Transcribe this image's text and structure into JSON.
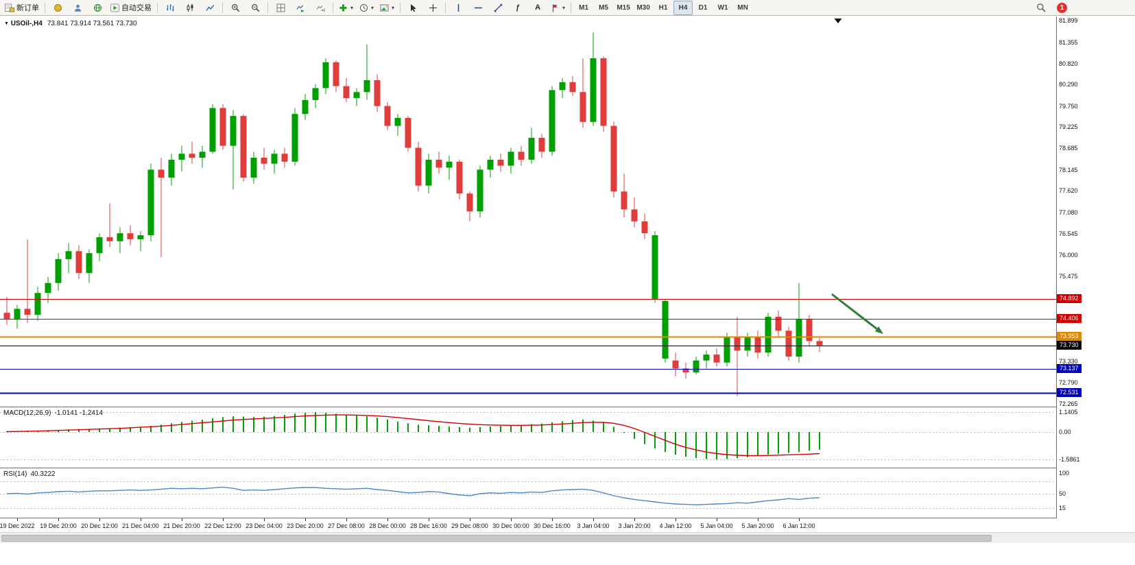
{
  "toolbar": {
    "new_order": "新订单",
    "auto_trading": "自动交易",
    "tool_labels": {
      "text": "A",
      "fibonacci": "ƒ"
    },
    "timeframes": [
      "M1",
      "M5",
      "M15",
      "M30",
      "H1",
      "H4",
      "D1",
      "W1",
      "MN"
    ],
    "active_timeframe": "H4",
    "notification_count": "1"
  },
  "chart_data": {
    "type": "candlestick",
    "title_symbol": "USOil-,H4",
    "title_ohlc": "73.841 73.914 73.561 73.730",
    "price_range": {
      "max": 81.899,
      "min": 72.265
    },
    "colors": {
      "bull": "#00A000",
      "bear": "#E03C3C",
      "macd_hist": "#00A000",
      "macd_signal": "#D40000",
      "rsi_line": "#4A86C8",
      "level_red": "#CC0000",
      "level_orange": "#DD8A00",
      "level_blue": "#0000BB",
      "level_black": "#000000",
      "arrow_green": "#2E7D32"
    },
    "candles": [
      [
        74.55,
        74.95,
        74.25,
        74.4
      ],
      [
        74.4,
        74.75,
        74.15,
        74.65
      ],
      [
        74.65,
        76.4,
        74.3,
        74.5
      ],
      [
        74.5,
        75.2,
        74.35,
        75.05
      ],
      [
        75.05,
        75.45,
        74.8,
        75.3
      ],
      [
        75.3,
        76.05,
        75.1,
        75.9
      ],
      [
        75.9,
        76.3,
        75.55,
        76.1
      ],
      [
        76.1,
        76.25,
        75.4,
        75.55
      ],
      [
        75.55,
        76.15,
        75.3,
        76.05
      ],
      [
        76.05,
        76.55,
        75.85,
        76.45
      ],
      [
        76.45,
        77.3,
        76.2,
        76.35
      ],
      [
        76.35,
        76.7,
        76.05,
        76.55
      ],
      [
        76.55,
        76.75,
        76.25,
        76.4
      ],
      [
        76.4,
        76.6,
        76.1,
        76.5
      ],
      [
        76.5,
        78.3,
        76.35,
        78.15
      ],
      [
        78.15,
        78.45,
        75.95,
        77.95
      ],
      [
        77.95,
        78.55,
        77.75,
        78.4
      ],
      [
        78.4,
        78.75,
        78.1,
        78.55
      ],
      [
        78.55,
        78.85,
        78.3,
        78.45
      ],
      [
        78.45,
        78.75,
        78.2,
        78.6
      ],
      [
        78.6,
        79.8,
        78.55,
        79.7
      ],
      [
        79.7,
        79.8,
        78.65,
        78.75
      ],
      [
        78.75,
        79.65,
        77.65,
        79.5
      ],
      [
        79.5,
        79.55,
        77.85,
        77.95
      ],
      [
        77.95,
        78.6,
        77.8,
        78.45
      ],
      [
        78.45,
        78.7,
        78.15,
        78.3
      ],
      [
        78.3,
        78.65,
        78.05,
        78.55
      ],
      [
        78.55,
        78.7,
        78.2,
        78.35
      ],
      [
        78.35,
        79.7,
        78.25,
        79.55
      ],
      [
        79.55,
        80.05,
        79.4,
        79.9
      ],
      [
        79.9,
        80.3,
        79.7,
        80.2
      ],
      [
        80.2,
        80.95,
        80.05,
        80.85
      ],
      [
        80.85,
        80.9,
        80.1,
        80.25
      ],
      [
        80.25,
        80.45,
        79.85,
        79.95
      ],
      [
        79.95,
        80.2,
        79.75,
        80.1
      ],
      [
        80.1,
        81.3,
        79.9,
        80.4
      ],
      [
        80.4,
        80.55,
        79.6,
        79.75
      ],
      [
        79.75,
        79.85,
        79.15,
        79.25
      ],
      [
        79.25,
        79.55,
        79.0,
        79.45
      ],
      [
        79.45,
        79.5,
        78.6,
        78.7
      ],
      [
        78.7,
        78.85,
        77.6,
        77.75
      ],
      [
        77.75,
        78.55,
        77.55,
        78.4
      ],
      [
        78.4,
        78.6,
        78.05,
        78.2
      ],
      [
        78.2,
        78.5,
        77.9,
        78.35
      ],
      [
        78.35,
        78.4,
        77.4,
        77.55
      ],
      [
        77.55,
        77.6,
        76.85,
        77.1
      ],
      [
        77.1,
        78.25,
        76.95,
        78.15
      ],
      [
        78.15,
        78.5,
        77.95,
        78.4
      ],
      [
        78.4,
        78.55,
        78.1,
        78.25
      ],
      [
        78.25,
        78.7,
        78.05,
        78.6
      ],
      [
        78.6,
        78.75,
        78.25,
        78.4
      ],
      [
        78.4,
        79.2,
        78.3,
        78.95
      ],
      [
        78.95,
        79.05,
        78.45,
        78.6
      ],
      [
        78.6,
        80.25,
        78.5,
        80.15
      ],
      [
        80.15,
        80.45,
        79.95,
        80.35
      ],
      [
        80.35,
        80.5,
        80.0,
        80.1
      ],
      [
        80.1,
        80.95,
        79.2,
        79.35
      ],
      [
        79.35,
        81.6,
        79.25,
        80.95
      ],
      [
        80.95,
        81.0,
        79.1,
        79.25
      ],
      [
        79.25,
        79.35,
        77.45,
        77.6
      ],
      [
        77.6,
        78.05,
        76.95,
        77.15
      ],
      [
        77.15,
        77.45,
        76.7,
        76.85
      ],
      [
        76.85,
        77.05,
        76.4,
        76.55
      ],
      [
        74.9,
        76.6,
        74.8,
        76.5
      ],
      [
        73.4,
        74.9,
        73.3,
        74.85
      ],
      [
        73.35,
        73.55,
        72.95,
        73.15
      ],
      [
        73.15,
        73.3,
        72.9,
        73.05
      ],
      [
        73.05,
        73.45,
        73.0,
        73.35
      ],
      [
        73.35,
        73.6,
        73.15,
        73.5
      ],
      [
        73.5,
        73.65,
        73.2,
        73.3
      ],
      [
        73.3,
        74.05,
        73.2,
        73.95
      ],
      [
        73.95,
        74.45,
        72.45,
        73.6
      ],
      [
        73.6,
        74.05,
        73.45,
        73.95
      ],
      [
        73.95,
        74.1,
        73.4,
        73.55
      ],
      [
        73.55,
        74.55,
        73.45,
        74.45
      ],
      [
        74.45,
        74.6,
        73.95,
        74.1
      ],
      [
        74.1,
        74.2,
        73.35,
        73.45
      ],
      [
        73.45,
        75.3,
        73.3,
        74.4
      ],
      [
        74.4,
        74.5,
        73.7,
        73.84
      ],
      [
        73.841,
        73.914,
        73.561,
        73.73
      ]
    ],
    "price_axis": {
      "labels": [
        "81.899",
        "81.355",
        "80.820",
        "80.290",
        "79.750",
        "79.225",
        "78.685",
        "78.145",
        "77.620",
        "77.080",
        "76.545",
        "76.000",
        "75.475",
        "73.330",
        "72.790",
        "72.265"
      ]
    },
    "levels": [
      {
        "price": 74.892,
        "label": "74.892",
        "type": "red",
        "width": 1
      },
      {
        "price": 74.406,
        "label": "74.406",
        "type": "red",
        "width": 1
      },
      {
        "price": 73.953,
        "label": "73.953",
        "type": "orange",
        "width": 2
      },
      {
        "price": 73.73,
        "label": "73.730",
        "type": "black",
        "width": 1
      },
      {
        "price": 73.137,
        "label": "73.137",
        "type": "blue",
        "width": 1
      },
      {
        "price": 72.531,
        "label": "72.531",
        "type": "blue",
        "width": 2
      }
    ],
    "time_axis": {
      "first_index": 1,
      "step": 4,
      "labels": [
        "19 Dec 2022",
        "19 Dec 20:00",
        "20 Dec 12:00",
        "21 Dec 04:00",
        "21 Dec 20:00",
        "22 Dec 12:00",
        "23 Dec 04:00",
        "23 Dec 20:00",
        "27 Dec 08:00",
        "28 Dec 00:00",
        "28 Dec 16:00",
        "29 Dec 08:00",
        "30 Dec 00:00",
        "30 Dec 16:00",
        "3 Jan 04:00",
        "3 Jan 20:00",
        "4 Jan 12:00",
        "5 Jan 04:00",
        "5 Jan 20:00",
        "6 Jan 12:00"
      ]
    },
    "indicators": {
      "macd": {
        "title": "MACD(12,26,9)",
        "values_text": "-1.0141 -1.2414",
        "axis_labels": [
          "1.1405",
          "0.00",
          "-1.5861"
        ],
        "axis_values": [
          1.1405,
          0,
          -1.5861
        ],
        "histogram": [
          0.05,
          0.04,
          0.06,
          0.08,
          0.1,
          0.12,
          0.15,
          0.17,
          0.18,
          0.2,
          0.22,
          0.25,
          0.28,
          0.3,
          0.35,
          0.42,
          0.5,
          0.58,
          0.65,
          0.7,
          0.78,
          0.85,
          0.9,
          0.88,
          0.85,
          0.88,
          0.92,
          0.98,
          1.05,
          1.1,
          1.14,
          1.1,
          1.05,
          1.0,
          0.95,
          0.9,
          0.82,
          0.72,
          0.6,
          0.5,
          0.42,
          0.38,
          0.35,
          0.32,
          0.28,
          0.25,
          0.28,
          0.32,
          0.35,
          0.38,
          0.4,
          0.45,
          0.48,
          0.55,
          0.62,
          0.68,
          0.72,
          0.65,
          0.55,
          0.3,
          -0.05,
          -0.4,
          -0.7,
          -0.95,
          -1.15,
          -1.3,
          -1.42,
          -1.5,
          -1.55,
          -1.58,
          -1.55,
          -1.5,
          -1.45,
          -1.38,
          -1.3,
          -1.25,
          -1.2,
          -1.15,
          -1.08,
          -1.0141
        ],
        "signal": [
          0.02,
          0.03,
          0.04,
          0.05,
          0.07,
          0.09,
          0.11,
          0.13,
          0.15,
          0.17,
          0.19,
          0.21,
          0.24,
          0.27,
          0.3,
          0.34,
          0.38,
          0.43,
          0.48,
          0.53,
          0.58,
          0.63,
          0.68,
          0.72,
          0.75,
          0.78,
          0.81,
          0.84,
          0.88,
          0.92,
          0.95,
          0.97,
          0.98,
          0.98,
          0.97,
          0.95,
          0.92,
          0.88,
          0.83,
          0.77,
          0.71,
          0.65,
          0.59,
          0.54,
          0.49,
          0.45,
          0.42,
          0.4,
          0.39,
          0.38,
          0.38,
          0.39,
          0.4,
          0.43,
          0.46,
          0.5,
          0.54,
          0.56,
          0.55,
          0.5,
          0.38,
          0.2,
          -0.02,
          -0.25,
          -0.48,
          -0.7,
          -0.88,
          -1.03,
          -1.15,
          -1.24,
          -1.3,
          -1.34,
          -1.36,
          -1.36,
          -1.35,
          -1.33,
          -1.31,
          -1.29,
          -1.27,
          -1.2414
        ]
      },
      "rsi": {
        "title": "RSI(14)",
        "value_text": "40.3222",
        "axis_labels": [
          "100",
          "50",
          "15"
        ],
        "axis_values": [
          100,
          50,
          15
        ],
        "level_values": [
          80,
          50,
          15
        ],
        "values": [
          50,
          51,
          49,
          52,
          53,
          55,
          56,
          54,
          56,
          57,
          57,
          58,
          59,
          58,
          59,
          61,
          63,
          62,
          63,
          62,
          64,
          66,
          63,
          58,
          59,
          58,
          60,
          62,
          64,
          65,
          65,
          63,
          62,
          61,
          62,
          63,
          60,
          58,
          55,
          52,
          53,
          55,
          54,
          50,
          47,
          45,
          50,
          52,
          51,
          53,
          52,
          54,
          53,
          57,
          59,
          60,
          61,
          58,
          52,
          45,
          40,
          36,
          33,
          30,
          27,
          25,
          24,
          23,
          24,
          25,
          26,
          28,
          27,
          30,
          33,
          35,
          38,
          36,
          39,
          40.3
        ]
      }
    },
    "annotations": {
      "trend_arrow": {
        "bar1": 80.2,
        "price1": 75.02,
        "bar2": 85.2,
        "price2": 74.02
      },
      "top_marker_bar": 80.8
    }
  }
}
